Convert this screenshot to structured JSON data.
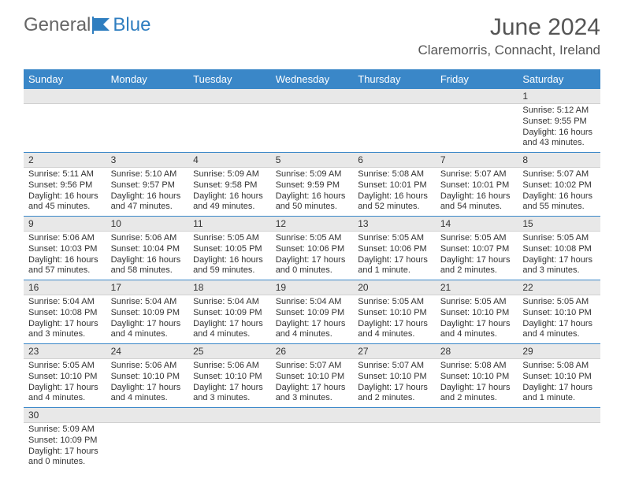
{
  "logo": {
    "general": "General",
    "blue": "Blue"
  },
  "title": "June 2024",
  "location": "Claremorris, Connacht, Ireland",
  "colors": {
    "header_bg": "#3a87c8",
    "header_text": "#ffffff",
    "daynum_bg": "#e8e8e8",
    "border": "#3a87c8",
    "logo_blue": "#2f7ec0",
    "logo_gray": "#666666"
  },
  "weekdays": [
    "Sunday",
    "Monday",
    "Tuesday",
    "Wednesday",
    "Thursday",
    "Friday",
    "Saturday"
  ],
  "weeks": [
    [
      null,
      null,
      null,
      null,
      null,
      null,
      {
        "n": "1",
        "sr": "5:12 AM",
        "ss": "9:55 PM",
        "dl": "16 hours and 43 minutes."
      }
    ],
    [
      {
        "n": "2",
        "sr": "5:11 AM",
        "ss": "9:56 PM",
        "dl": "16 hours and 45 minutes."
      },
      {
        "n": "3",
        "sr": "5:10 AM",
        "ss": "9:57 PM",
        "dl": "16 hours and 47 minutes."
      },
      {
        "n": "4",
        "sr": "5:09 AM",
        "ss": "9:58 PM",
        "dl": "16 hours and 49 minutes."
      },
      {
        "n": "5",
        "sr": "5:09 AM",
        "ss": "9:59 PM",
        "dl": "16 hours and 50 minutes."
      },
      {
        "n": "6",
        "sr": "5:08 AM",
        "ss": "10:01 PM",
        "dl": "16 hours and 52 minutes."
      },
      {
        "n": "7",
        "sr": "5:07 AM",
        "ss": "10:01 PM",
        "dl": "16 hours and 54 minutes."
      },
      {
        "n": "8",
        "sr": "5:07 AM",
        "ss": "10:02 PM",
        "dl": "16 hours and 55 minutes."
      }
    ],
    [
      {
        "n": "9",
        "sr": "5:06 AM",
        "ss": "10:03 PM",
        "dl": "16 hours and 57 minutes."
      },
      {
        "n": "10",
        "sr": "5:06 AM",
        "ss": "10:04 PM",
        "dl": "16 hours and 58 minutes."
      },
      {
        "n": "11",
        "sr": "5:05 AM",
        "ss": "10:05 PM",
        "dl": "16 hours and 59 minutes."
      },
      {
        "n": "12",
        "sr": "5:05 AM",
        "ss": "10:06 PM",
        "dl": "17 hours and 0 minutes."
      },
      {
        "n": "13",
        "sr": "5:05 AM",
        "ss": "10:06 PM",
        "dl": "17 hours and 1 minute."
      },
      {
        "n": "14",
        "sr": "5:05 AM",
        "ss": "10:07 PM",
        "dl": "17 hours and 2 minutes."
      },
      {
        "n": "15",
        "sr": "5:05 AM",
        "ss": "10:08 PM",
        "dl": "17 hours and 3 minutes."
      }
    ],
    [
      {
        "n": "16",
        "sr": "5:04 AM",
        "ss": "10:08 PM",
        "dl": "17 hours and 3 minutes."
      },
      {
        "n": "17",
        "sr": "5:04 AM",
        "ss": "10:09 PM",
        "dl": "17 hours and 4 minutes."
      },
      {
        "n": "18",
        "sr": "5:04 AM",
        "ss": "10:09 PM",
        "dl": "17 hours and 4 minutes."
      },
      {
        "n": "19",
        "sr": "5:04 AM",
        "ss": "10:09 PM",
        "dl": "17 hours and 4 minutes."
      },
      {
        "n": "20",
        "sr": "5:05 AM",
        "ss": "10:10 PM",
        "dl": "17 hours and 4 minutes."
      },
      {
        "n": "21",
        "sr": "5:05 AM",
        "ss": "10:10 PM",
        "dl": "17 hours and 4 minutes."
      },
      {
        "n": "22",
        "sr": "5:05 AM",
        "ss": "10:10 PM",
        "dl": "17 hours and 4 minutes."
      }
    ],
    [
      {
        "n": "23",
        "sr": "5:05 AM",
        "ss": "10:10 PM",
        "dl": "17 hours and 4 minutes."
      },
      {
        "n": "24",
        "sr": "5:06 AM",
        "ss": "10:10 PM",
        "dl": "17 hours and 4 minutes."
      },
      {
        "n": "25",
        "sr": "5:06 AM",
        "ss": "10:10 PM",
        "dl": "17 hours and 3 minutes."
      },
      {
        "n": "26",
        "sr": "5:07 AM",
        "ss": "10:10 PM",
        "dl": "17 hours and 3 minutes."
      },
      {
        "n": "27",
        "sr": "5:07 AM",
        "ss": "10:10 PM",
        "dl": "17 hours and 2 minutes."
      },
      {
        "n": "28",
        "sr": "5:08 AM",
        "ss": "10:10 PM",
        "dl": "17 hours and 2 minutes."
      },
      {
        "n": "29",
        "sr": "5:08 AM",
        "ss": "10:10 PM",
        "dl": "17 hours and 1 minute."
      }
    ],
    [
      {
        "n": "30",
        "sr": "5:09 AM",
        "ss": "10:09 PM",
        "dl": "17 hours and 0 minutes."
      },
      null,
      null,
      null,
      null,
      null,
      null
    ]
  ],
  "labels": {
    "sunrise": "Sunrise:",
    "sunset": "Sunset:",
    "daylight": "Daylight:"
  }
}
